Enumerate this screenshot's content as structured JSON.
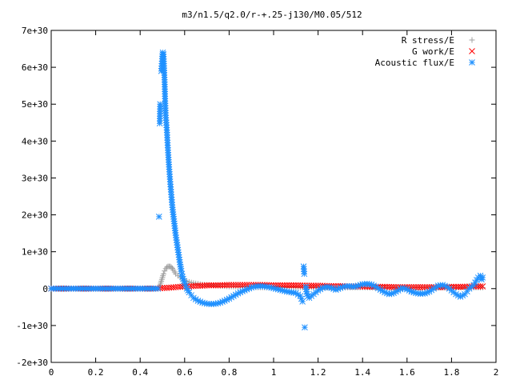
{
  "chart_data": {
    "type": "scatter",
    "title": "m3/n1.5/q2.0/r-+.25-j130/M0.05/512",
    "xlabel": "",
    "ylabel": "",
    "xlim": [
      0,
      2
    ],
    "ylim": [
      -2e+30,
      7e+30
    ],
    "x_ticks": [
      {
        "value": 0,
        "label": "0"
      },
      {
        "value": 0.2,
        "label": "0.2"
      },
      {
        "value": 0.4,
        "label": "0.4"
      },
      {
        "value": 0.6,
        "label": "0.6"
      },
      {
        "value": 0.8,
        "label": "0.8"
      },
      {
        "value": 1.0,
        "label": "1"
      },
      {
        "value": 1.2,
        "label": "1.2"
      },
      {
        "value": 1.4,
        "label": "1.4"
      },
      {
        "value": 1.6,
        "label": "1.6"
      },
      {
        "value": 1.8,
        "label": "1.8"
      },
      {
        "value": 2.0,
        "label": "2"
      }
    ],
    "y_ticks": [
      {
        "value": -2e+30,
        "label": "-2e+30"
      },
      {
        "value": -1e+30,
        "label": "-1e+30"
      },
      {
        "value": 0,
        "label": "0"
      },
      {
        "value": 1e+30,
        "label": "1e+30"
      },
      {
        "value": 2e+30,
        "label": "2e+30"
      },
      {
        "value": 3e+30,
        "label": "3e+30"
      },
      {
        "value": 4e+30,
        "label": "4e+30"
      },
      {
        "value": 5e+30,
        "label": "5e+30"
      },
      {
        "value": 6e+30,
        "label": "6e+30"
      },
      {
        "value": 7e+30,
        "label": "7e+30"
      }
    ],
    "grid": false,
    "legend_position": "top-right",
    "series": [
      {
        "name": "R stress/E",
        "marker": "plus",
        "color": "#a0a0a0",
        "points": [
          [
            0.0,
            0
          ],
          [
            0.05,
            0
          ],
          [
            0.1,
            0
          ],
          [
            0.15,
            0
          ],
          [
            0.2,
            0
          ],
          [
            0.25,
            0
          ],
          [
            0.3,
            0
          ],
          [
            0.35,
            0
          ],
          [
            0.4,
            0
          ],
          [
            0.45,
            0
          ],
          [
            0.48,
            0
          ],
          [
            0.49,
            1e+29
          ],
          [
            0.495,
            2e+29
          ],
          [
            0.5,
            3e+29
          ],
          [
            0.505,
            4e+29
          ],
          [
            0.51,
            4.8e+29
          ],
          [
            0.515,
            5.4e+29
          ],
          [
            0.52,
            5.8e+29
          ],
          [
            0.525,
            6e+29
          ],
          [
            0.53,
            6e+29
          ],
          [
            0.535,
            6e+29
          ],
          [
            0.54,
            5.8e+29
          ],
          [
            0.545,
            5.5e+29
          ],
          [
            0.55,
            5e+29
          ],
          [
            0.555,
            4.5e+29
          ],
          [
            0.56,
            4e+29
          ],
          [
            0.57,
            3.5e+29
          ],
          [
            0.58,
            3e+29
          ],
          [
            0.59,
            2.6e+29
          ],
          [
            0.6,
            2.2e+29
          ],
          [
            0.62,
            1.8e+29
          ],
          [
            0.64,
            1.5e+29
          ],
          [
            0.66,
            1.3e+29
          ],
          [
            0.68,
            1.1e+29
          ],
          [
            0.7,
            1e+29
          ],
          [
            0.75,
            8e+28
          ],
          [
            0.8,
            6e+28
          ],
          [
            0.85,
            5e+28
          ],
          [
            0.9,
            4e+28
          ],
          [
            0.95,
            3e+28
          ],
          [
            1.0,
            3e+28
          ],
          [
            1.05,
            3e+28
          ],
          [
            1.1,
            3e+28
          ],
          [
            1.15,
            3e+28
          ],
          [
            1.2,
            3e+28
          ],
          [
            1.3,
            3e+28
          ],
          [
            1.4,
            3e+28
          ],
          [
            1.5,
            3e+28
          ],
          [
            1.6,
            3e+28
          ],
          [
            1.7,
            3e+28
          ],
          [
            1.8,
            3e+28
          ],
          [
            1.9,
            3e+28
          ],
          [
            1.94,
            3e+28
          ]
        ]
      },
      {
        "name": "G work/E",
        "marker": "cross",
        "color": "#ff0000",
        "points": [
          [
            0.0,
            0
          ],
          [
            0.1,
            0
          ],
          [
            0.2,
            0
          ],
          [
            0.3,
            0
          ],
          [
            0.4,
            0
          ],
          [
            0.48,
            0
          ],
          [
            0.5,
            2e+28
          ],
          [
            0.52,
            2e+28
          ],
          [
            0.54,
            3e+28
          ],
          [
            0.56,
            4e+28
          ],
          [
            0.58,
            5e+28
          ],
          [
            0.6,
            6e+28
          ],
          [
            0.62,
            6e+28
          ],
          [
            0.64,
            7e+28
          ],
          [
            0.66,
            8e+28
          ],
          [
            0.68,
            8e+28
          ],
          [
            0.7,
            9e+28
          ],
          [
            0.72,
            9e+28
          ],
          [
            0.75,
            9e+28
          ],
          [
            0.8,
            1e+29
          ],
          [
            0.85,
            1e+29
          ],
          [
            0.9,
            1e+29
          ],
          [
            0.95,
            1e+29
          ],
          [
            1.0,
            9e+28
          ],
          [
            1.05,
            9e+28
          ],
          [
            1.1,
            9e+28
          ],
          [
            1.15,
            8e+28
          ],
          [
            1.2,
            8e+28
          ],
          [
            1.25,
            7e+28
          ],
          [
            1.3,
            7e+28
          ],
          [
            1.35,
            6e+28
          ],
          [
            1.4,
            6e+28
          ],
          [
            1.45,
            5e+28
          ],
          [
            1.5,
            5e+28
          ],
          [
            1.55,
            4e+28
          ],
          [
            1.6,
            4e+28
          ],
          [
            1.65,
            4e+28
          ],
          [
            1.7,
            4e+28
          ],
          [
            1.75,
            4e+28
          ],
          [
            1.8,
            5e+28
          ],
          [
            1.85,
            5e+28
          ],
          [
            1.9,
            6e+28
          ],
          [
            1.94,
            6e+28
          ]
        ]
      },
      {
        "name": "Acoustic flux/E",
        "marker": "star",
        "color": "#1e90ff",
        "points": [
          [
            0.0,
            0
          ],
          [
            0.05,
            0
          ],
          [
            0.1,
            0
          ],
          [
            0.15,
            0
          ],
          [
            0.2,
            0
          ],
          [
            0.25,
            0
          ],
          [
            0.3,
            0
          ],
          [
            0.35,
            0
          ],
          [
            0.4,
            0
          ],
          [
            0.45,
            0
          ],
          [
            0.48,
            0
          ],
          [
            0.485,
            1.95e+30
          ],
          [
            0.488,
            4.48e+30
          ],
          [
            0.49,
            5e+30
          ],
          [
            0.495,
            5.9e+30
          ],
          [
            0.5,
            6.3e+30
          ],
          [
            0.502,
            6.4e+30
          ],
          [
            0.505,
            6.35e+30
          ],
          [
            0.51,
            5.6e+30
          ],
          [
            0.512,
            5.15e+30
          ],
          [
            0.515,
            4.7e+30
          ],
          [
            0.52,
            4.3e+30
          ],
          [
            0.525,
            3.75e+30
          ],
          [
            0.53,
            3.3e+30
          ],
          [
            0.535,
            2.9e+30
          ],
          [
            0.54,
            2.55e+30
          ],
          [
            0.545,
            2.2e+30
          ],
          [
            0.55,
            1.95e+30
          ],
          [
            0.555,
            1.7e+30
          ],
          [
            0.56,
            1.45e+30
          ],
          [
            0.565,
            1.25e+30
          ],
          [
            0.57,
            1.05e+30
          ],
          [
            0.575,
            8.5e+29
          ],
          [
            0.58,
            6.5e+29
          ],
          [
            0.585,
            4.8e+29
          ],
          [
            0.59,
            3.2e+29
          ],
          [
            0.6,
            1.5e+29
          ],
          [
            0.61,
            0.0
          ],
          [
            0.62,
            -1e+29
          ],
          [
            0.63,
            -1.8e+29
          ],
          [
            0.64,
            -2.5e+29
          ],
          [
            0.66,
            -3.3e+29
          ],
          [
            0.68,
            -3.8e+29
          ],
          [
            0.7,
            -4.1e+29
          ],
          [
            0.72,
            -4.2e+29
          ],
          [
            0.74,
            -4.1e+29
          ],
          [
            0.76,
            -3.8e+29
          ],
          [
            0.78,
            -3.3e+29
          ],
          [
            0.8,
            -2.7e+29
          ],
          [
            0.82,
            -2e+29
          ],
          [
            0.84,
            -1.3e+29
          ],
          [
            0.86,
            -7e+28
          ],
          [
            0.88,
            -2e+28
          ],
          [
            0.9,
            3e+28
          ],
          [
            0.92,
            6e+28
          ],
          [
            0.94,
            7e+28
          ],
          [
            0.96,
            6e+28
          ],
          [
            0.98,
            4e+28
          ],
          [
            1.0,
            1e+28
          ],
          [
            1.02,
            -2e+28
          ],
          [
            1.04,
            -5e+28
          ],
          [
            1.06,
            -8e+28
          ],
          [
            1.08,
            -1e+29
          ],
          [
            1.1,
            -1.2e+29
          ],
          [
            1.12,
            -2e+29
          ],
          [
            1.13,
            -3.5e+29
          ],
          [
            1.135,
            6e+29
          ],
          [
            1.138,
            4e+29
          ],
          [
            1.14,
            -1.05e+30
          ],
          [
            1.145,
            5e+28
          ],
          [
            1.15,
            -1.5e+29
          ],
          [
            1.16,
            -2.5e+29
          ],
          [
            1.18,
            -1.5e+29
          ],
          [
            1.2,
            -5e+28
          ],
          [
            1.22,
            2e+28
          ],
          [
            1.24,
            5e+28
          ],
          [
            1.26,
            2e+28
          ],
          [
            1.28,
            -3e+28
          ],
          [
            1.3,
            2e+28
          ],
          [
            1.32,
            6e+28
          ],
          [
            1.34,
            7e+28
          ],
          [
            1.36,
            5e+28
          ],
          [
            1.38,
            8e+28
          ],
          [
            1.4,
            1.2e+29
          ],
          [
            1.42,
            1.3e+29
          ],
          [
            1.44,
            1.1e+29
          ],
          [
            1.46,
            5e+28
          ],
          [
            1.48,
            -3e+28
          ],
          [
            1.5,
            -1e+29
          ],
          [
            1.52,
            -1.5e+29
          ],
          [
            1.54,
            -1.2e+29
          ],
          [
            1.56,
            -5e+28
          ],
          [
            1.58,
            2e+28
          ],
          [
            1.6,
            -2e+28
          ],
          [
            1.62,
            -8e+28
          ],
          [
            1.64,
            -1.2e+29
          ],
          [
            1.66,
            -1.4e+29
          ],
          [
            1.68,
            -1.3e+29
          ],
          [
            1.7,
            -8e+28
          ],
          [
            1.72,
            0.0
          ],
          [
            1.74,
            8e+28
          ],
          [
            1.76,
            1e+29
          ],
          [
            1.78,
            5e+28
          ],
          [
            1.8,
            -5e+28
          ],
          [
            1.82,
            -1.5e+29
          ],
          [
            1.84,
            -2.2e+29
          ],
          [
            1.86,
            -1.5e+29
          ],
          [
            1.88,
            0.0
          ],
          [
            1.9,
            1e+29
          ],
          [
            1.92,
            3e+29
          ],
          [
            1.93,
            3.5e+29
          ],
          [
            1.935,
            2.5e+29
          ],
          [
            1.94,
            3e+29
          ]
        ]
      }
    ]
  }
}
